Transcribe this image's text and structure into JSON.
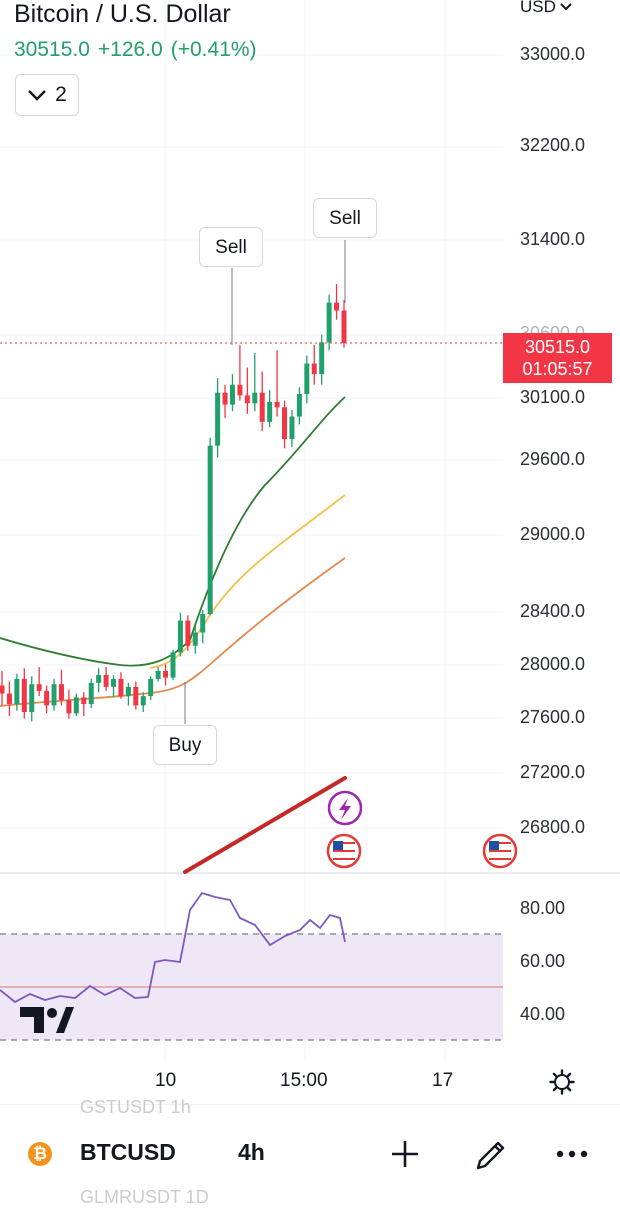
{
  "header": {
    "title": "Bitcoin / U.S. Dollar",
    "last_price": "30515.0",
    "change": "+126.0",
    "change_pct": "(+0.41%)",
    "collapse_count": "2"
  },
  "currency": "USD",
  "price_axis": [
    "33000.0",
    "32200.0",
    "31400.0",
    "30100.0",
    "29600.0",
    "29000.0",
    "28400.0",
    "28000.0",
    "27600.0",
    "27200.0",
    "26800.0"
  ],
  "price_axis_hidden": "30600.0",
  "current_price": {
    "price": "30515.0",
    "countdown": "01:05:57"
  },
  "rsi_axis": [
    "80.00",
    "60.00",
    "40.00"
  ],
  "time_axis": [
    "10",
    "15:00",
    "17"
  ],
  "signals": [
    {
      "label": "Sell",
      "type": "sell"
    },
    {
      "label": "Sell",
      "type": "sell"
    },
    {
      "label": "Buy",
      "type": "buy"
    }
  ],
  "bottom_bar": {
    "symbol": "BTCUSD",
    "interval": "4h",
    "ghost_top": "GSTUSDT   1h",
    "ghost_bottom": "GLMRUSDT  1D"
  },
  "colors": {
    "up": "#22a06b",
    "down": "#f23645",
    "ema_fast": "#2e7d32",
    "ema_mid": "#f5c04a",
    "ema_slow": "#e08a4c",
    "rsi": "#7e57c2",
    "rsi_band": "#ede7f6",
    "trend": "#c62828"
  },
  "icons": [
    "chevron-down-icon",
    "bitcoin-icon",
    "lightning-icon",
    "us-flag-icon",
    "tradingview-logo",
    "settings-icon",
    "plus-icon",
    "pen-icon",
    "more-icon"
  ],
  "chart_data": {
    "type": "candlestick",
    "price_range": [
      26600,
      33200
    ],
    "ohlc": [
      [
        27930,
        28040,
        27780,
        27870
      ],
      [
        27870,
        27960,
        27700,
        27790
      ],
      [
        27790,
        28020,
        27740,
        27980
      ],
      [
        27980,
        28060,
        27680,
        27730
      ],
      [
        27730,
        28000,
        27660,
        27940
      ],
      [
        27940,
        28070,
        27850,
        27890
      ],
      [
        27890,
        27930,
        27720,
        27780
      ],
      [
        27780,
        27980,
        27740,
        27940
      ],
      [
        27940,
        28050,
        27780,
        27820
      ],
      [
        27820,
        27900,
        27680,
        27720
      ],
      [
        27720,
        27870,
        27700,
        27840
      ],
      [
        27840,
        27880,
        27700,
        27790
      ],
      [
        27790,
        27980,
        27760,
        27950
      ],
      [
        27950,
        28060,
        27880,
        28010
      ],
      [
        28010,
        28070,
        27890,
        27920
      ],
      [
        27920,
        28010,
        27840,
        27980
      ],
      [
        27980,
        28030,
        27830,
        27850
      ],
      [
        27850,
        27950,
        27780,
        27920
      ],
      [
        27920,
        27960,
        27750,
        27780
      ],
      [
        27780,
        27880,
        27730,
        27850
      ],
      [
        27850,
        28000,
        27820,
        27980
      ],
      [
        27980,
        28070,
        27960,
        28040
      ],
      [
        28040,
        28090,
        27930,
        27990
      ],
      [
        27990,
        28200,
        27970,
        28180
      ],
      [
        28180,
        28480,
        28150,
        28420
      ],
      [
        28420,
        28460,
        28190,
        28230
      ],
      [
        28230,
        28380,
        28170,
        28330
      ],
      [
        28330,
        28500,
        28250,
        28470
      ],
      [
        28470,
        29800,
        28460,
        29740
      ],
      [
        29740,
        30250,
        29650,
        30140
      ],
      [
        30140,
        30200,
        29950,
        30050
      ],
      [
        30050,
        30280,
        30000,
        30200
      ],
      [
        30200,
        30500,
        30080,
        30120
      ],
      [
        30120,
        30330,
        29980,
        30060
      ],
      [
        30060,
        30440,
        30000,
        30140
      ],
      [
        30140,
        30300,
        29850,
        29920
      ],
      [
        29920,
        30160,
        29880,
        30070
      ],
      [
        30070,
        30460,
        29960,
        30030
      ],
      [
        30030,
        30080,
        29720,
        29790
      ],
      [
        29790,
        30010,
        29730,
        29960
      ],
      [
        29960,
        30180,
        29900,
        30130
      ],
      [
        30130,
        30420,
        30060,
        30360
      ],
      [
        30360,
        30500,
        30200,
        30280
      ],
      [
        30280,
        30580,
        30200,
        30520
      ],
      [
        30520,
        30880,
        30460,
        30820
      ],
      [
        30820,
        30960,
        30690,
        30760
      ],
      [
        30760,
        30840,
        30480,
        30515
      ]
    ],
    "rsi_range": [
      30,
      90
    ],
    "rsi_levels": [
      70,
      50,
      30
    ]
  }
}
